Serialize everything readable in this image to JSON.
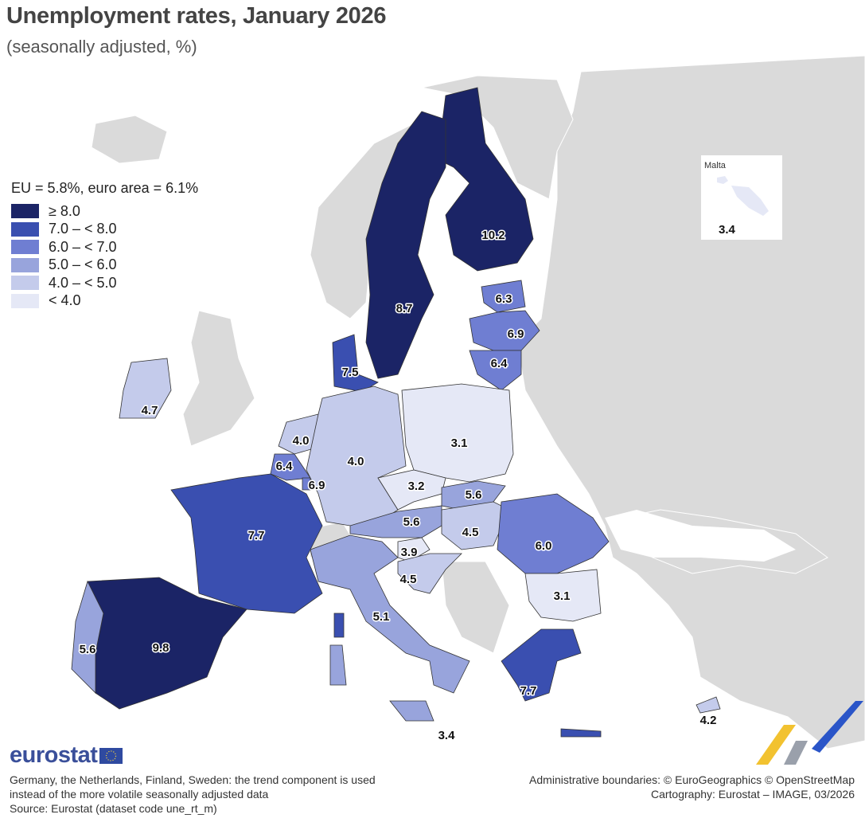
{
  "title": "Unemployment rates, January 2026",
  "subtitle": "(seasonally adjusted, %)",
  "legend": {
    "header": "EU = 5.8%, euro area = 6.1%",
    "classes": [
      {
        "label": "≥ 8.0",
        "color": "#1b2466"
      },
      {
        "label": "7.0 – < 8.0",
        "color": "#3a4fb0"
      },
      {
        "label": "6.0 – < 7.0",
        "color": "#6f7ed2"
      },
      {
        "label": "5.0 – < 6.0",
        "color": "#98a4dc"
      },
      {
        "label": "4.0 – < 5.0",
        "color": "#c4cbeb"
      },
      {
        "label": "< 4.0",
        "color": "#e5e8f6"
      }
    ]
  },
  "colors": {
    "no_data": "#dadada",
    "sea": "#ffffff",
    "border": "#333333"
  },
  "inset": {
    "label": "Malta",
    "value": "3.4"
  },
  "chart_data": {
    "type": "choropleth",
    "unit": "%",
    "regions": [
      {
        "name": "Finland",
        "value": "10.2"
      },
      {
        "name": "Sweden",
        "value": "8.7"
      },
      {
        "name": "Estonia",
        "value": "6.3"
      },
      {
        "name": "Latvia",
        "value": "6.9"
      },
      {
        "name": "Lithuania",
        "value": "6.4"
      },
      {
        "name": "Denmark",
        "value": "7.5"
      },
      {
        "name": "Ireland",
        "value": "4.7"
      },
      {
        "name": "Netherlands",
        "value": "4.0"
      },
      {
        "name": "Belgium",
        "value": "6.4"
      },
      {
        "name": "Luxembourg",
        "value": "6.9"
      },
      {
        "name": "Germany",
        "value": "4.0"
      },
      {
        "name": "Poland",
        "value": "3.1"
      },
      {
        "name": "Czechia",
        "value": "3.2"
      },
      {
        "name": "Slovakia",
        "value": "5.6"
      },
      {
        "name": "Austria",
        "value": "5.6"
      },
      {
        "name": "Hungary",
        "value": "4.5"
      },
      {
        "name": "Slovenia",
        "value": "3.9"
      },
      {
        "name": "Croatia",
        "value": "4.5"
      },
      {
        "name": "France",
        "value": "7.7"
      },
      {
        "name": "Romania",
        "value": "6.0"
      },
      {
        "name": "Bulgaria",
        "value": "3.1"
      },
      {
        "name": "Italy",
        "value": "5.1"
      },
      {
        "name": "Spain",
        "value": "9.8"
      },
      {
        "name": "Portugal",
        "value": "5.6"
      },
      {
        "name": "Greece",
        "value": "7.7"
      },
      {
        "name": "Malta",
        "value": "3.4"
      },
      {
        "name": "Cyprus",
        "value": "4.2"
      }
    ]
  },
  "map_labels": {
    "finland": "10.2",
    "sweden": "8.7",
    "estonia": "6.3",
    "latvia": "6.9",
    "lithuania": "6.4",
    "denmark": "7.5",
    "ireland": "4.7",
    "netherlands": "4.0",
    "belgium": "6.4",
    "luxembourg": "6.9",
    "germany": "4.0",
    "poland": "3.1",
    "czechia": "3.2",
    "slovakia": "5.6",
    "austria": "5.6",
    "hungary": "4.5",
    "slovenia": "3.9",
    "croatia": "4.5",
    "france": "7.7",
    "romania": "6.0",
    "bulgaria": "3.1",
    "italy": "5.1",
    "spain": "9.8",
    "portugal": "5.6",
    "greece": "7.7",
    "malta_main": "3.4",
    "cyprus": "4.2"
  },
  "brand": "eurostat",
  "footer_left": [
    "Germany, the Netherlands, Finland, Sweden: the trend component is used",
    "instead of the more volatile seasonally adjusted data",
    "Source: Eurostat (dataset code une_rt_m)"
  ],
  "footer_right": [
    "Administrative boundaries: © EuroGeographics © OpenStreetMap",
    "Cartography: Eurostat – IMAGE, 03/2026"
  ]
}
